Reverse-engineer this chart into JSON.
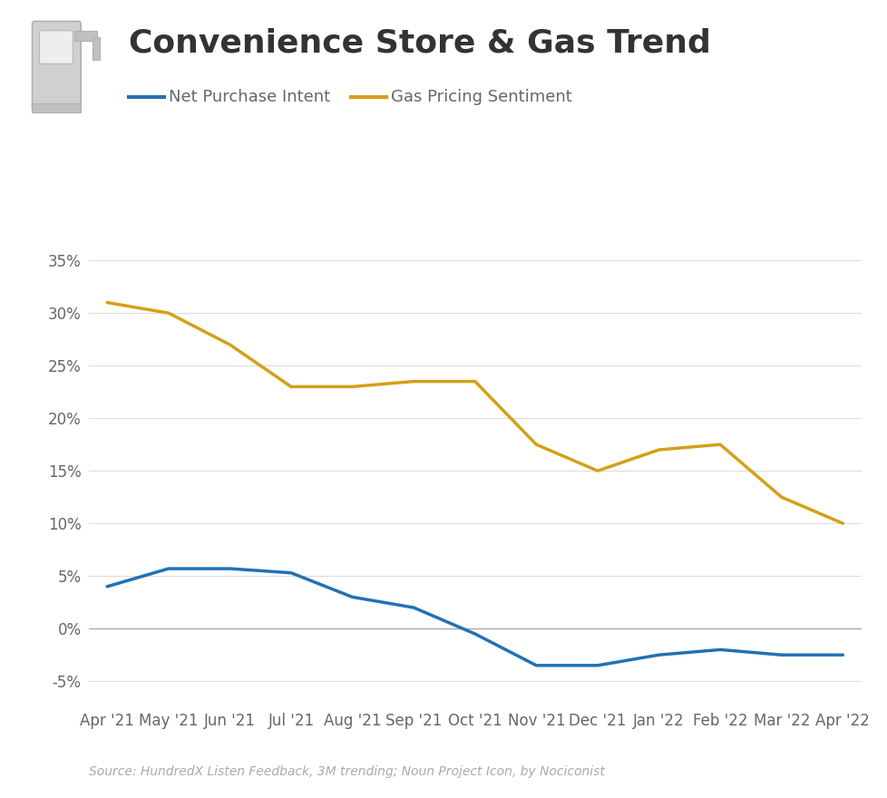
{
  "title": "Convenience Store & Gas Trend",
  "subtitle_source": "Source: HundredX Listen Feedback, 3M trending; Noun Project Icon, by Nociconist",
  "legend_labels": [
    "Net Purchase Intent",
    "Gas Pricing Sentiment"
  ],
  "line_colors": [
    "#2171b5",
    "#d4a017"
  ],
  "x_labels": [
    "Apr '21",
    "May '21",
    "Jun '21",
    "Jul '21",
    "Aug '21",
    "Sep '21",
    "Oct '21",
    "Nov '21",
    "Dec '21",
    "Jan '22",
    "Feb '22",
    "Mar '22",
    "Apr '22"
  ],
  "net_purchase_intent": [
    4.0,
    5.7,
    5.7,
    5.3,
    3.0,
    2.0,
    -0.5,
    -3.5,
    -3.5,
    -2.5,
    -2.0,
    -2.5,
    -2.5
  ],
  "gas_pricing_sentiment": [
    31.0,
    30.0,
    27.0,
    23.0,
    23.0,
    23.5,
    23.5,
    17.5,
    15.0,
    17.0,
    17.5,
    12.5,
    10.0
  ],
  "ylim": [
    -7,
    37
  ],
  "yticks": [
    -5,
    0,
    5,
    10,
    15,
    20,
    25,
    30,
    35
  ],
  "background_color": "#ffffff",
  "grid_color": "#dddddd",
  "title_fontsize": 26,
  "tick_fontsize": 12,
  "legend_fontsize": 13,
  "source_fontsize": 10,
  "line_width": 2.5,
  "title_color": "#333333",
  "tick_color": "#666666",
  "source_color": "#aaaaaa"
}
